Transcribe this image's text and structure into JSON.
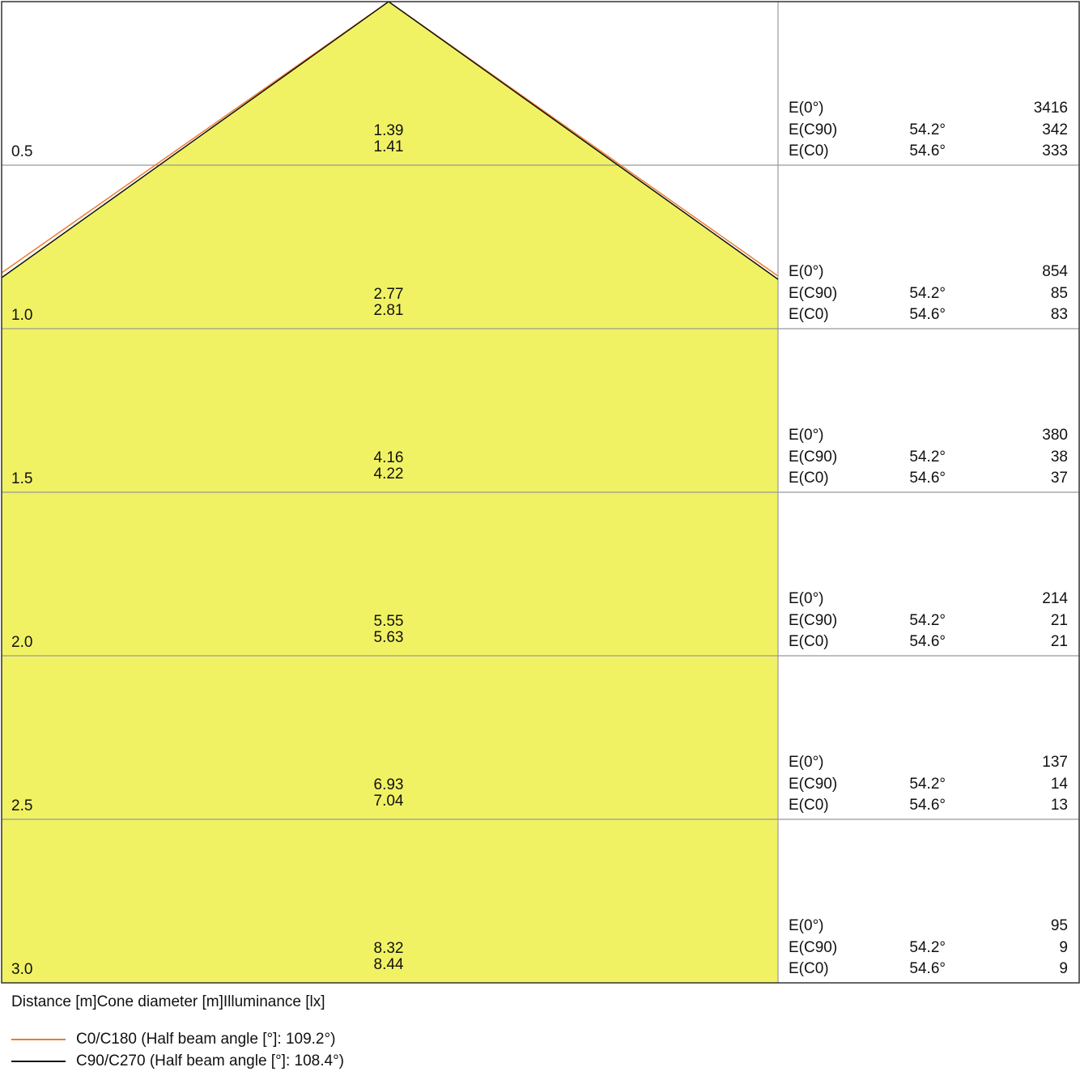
{
  "chart_data": {
    "type": "cone-diagram",
    "caption": "Distance [m]Cone diameter [m]Illuminance [lx]",
    "colors": {
      "fill": "#F0F264",
      "C0/C180": "#F07A2A",
      "C90/C270": "#111111",
      "grid": "#999999"
    },
    "legend": [
      {
        "name": "C0/C180 (Half beam angle [°]: 109.2°)",
        "color": "#F07A2A"
      },
      {
        "name": "C90/C270 (Half beam angle [°]: 108.4°)",
        "color": "#111111"
      }
    ],
    "rows": [
      {
        "distance": "0.5",
        "diameter_c90": "1.39",
        "diameter_c0": "1.41",
        "e0_label": "E(0°)",
        "e0": "3416",
        "ec90_label": "E(C90)",
        "ec90_angle": "54.2°",
        "ec90": "342",
        "ec0_label": "E(C0)",
        "ec0_angle": "54.6°",
        "ec0": "333"
      },
      {
        "distance": "1.0",
        "diameter_c90": "2.77",
        "diameter_c0": "2.81",
        "e0_label": "E(0°)",
        "e0": "854",
        "ec90_label": "E(C90)",
        "ec90_angle": "54.2°",
        "ec90": "85",
        "ec0_label": "E(C0)",
        "ec0_angle": "54.6°",
        "ec0": "83"
      },
      {
        "distance": "1.5",
        "diameter_c90": "4.16",
        "diameter_c0": "4.22",
        "e0_label": "E(0°)",
        "e0": "380",
        "ec90_label": "E(C90)",
        "ec90_angle": "54.2°",
        "ec90": "38",
        "ec0_label": "E(C0)",
        "ec0_angle": "54.6°",
        "ec0": "37"
      },
      {
        "distance": "2.0",
        "diameter_c90": "5.55",
        "diameter_c0": "5.63",
        "e0_label": "E(0°)",
        "e0": "214",
        "ec90_label": "E(C90)",
        "ec90_angle": "54.2°",
        "ec90": "21",
        "ec0_label": "E(C0)",
        "ec0_angle": "54.6°",
        "ec0": "21"
      },
      {
        "distance": "2.5",
        "diameter_c90": "6.93",
        "diameter_c0": "7.04",
        "e0_label": "E(0°)",
        "e0": "137",
        "ec90_label": "E(C90)",
        "ec90_angle": "54.2°",
        "ec90": "14",
        "ec0_label": "E(C0)",
        "ec0_angle": "54.6°",
        "ec0": "13"
      },
      {
        "distance": "3.0",
        "diameter_c90": "8.32",
        "diameter_c0": "8.44",
        "e0_label": "E(0°)",
        "e0": "95",
        "ec90_label": "E(C90)",
        "ec90_angle": "54.2°",
        "ec90": "9",
        "ec0_label": "E(C0)",
        "ec0_angle": "54.6°",
        "ec0": "9"
      }
    ]
  }
}
